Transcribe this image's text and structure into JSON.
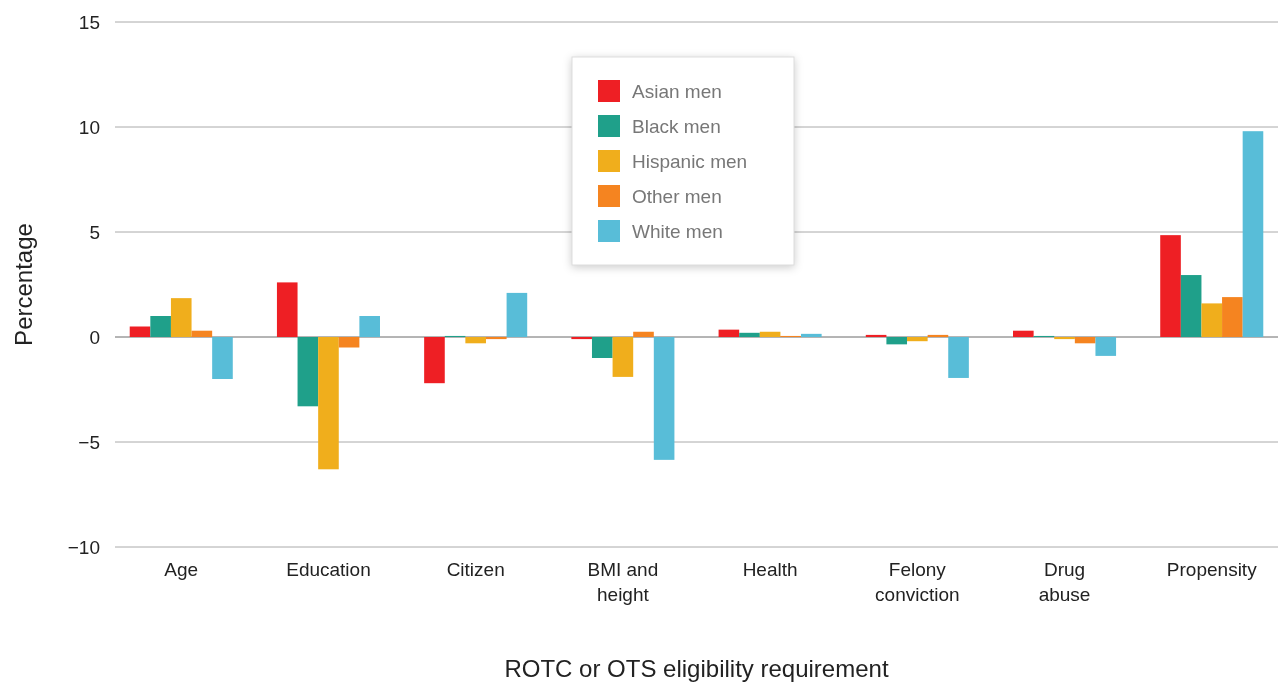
{
  "chart_data": {
    "type": "bar",
    "xlabel": "ROTC or OTS eligibility requirement",
    "ylabel": "Percentage",
    "categories": [
      "Age",
      "Education",
      "Citizen",
      "BMI and height",
      "Health",
      "Felony conviction",
      "Drug abuse",
      "Propensity"
    ],
    "series": [
      {
        "name": "Asian men",
        "color": "#ee1f24",
        "values": [
          0.5,
          2.6,
          -2.2,
          -0.1,
          0.35,
          0.1,
          0.3,
          4.85
        ]
      },
      {
        "name": "Black men",
        "color": "#1fa08a",
        "values": [
          1.0,
          -3.3,
          0.05,
          -1.0,
          0.2,
          -0.35,
          0.05,
          2.95
        ]
      },
      {
        "name": "Hispanic men",
        "color": "#f0ae1c",
        "values": [
          1.85,
          -6.3,
          -0.3,
          -1.9,
          0.25,
          -0.2,
          -0.1,
          1.6
        ]
      },
      {
        "name": "Other men",
        "color": "#f58420",
        "values": [
          0.3,
          -0.5,
          -0.1,
          0.25,
          0.05,
          0.1,
          -0.3,
          1.9
        ]
      },
      {
        "name": "White men",
        "color": "#58bdd8",
        "values": [
          -2.0,
          1.0,
          2.1,
          -5.85,
          0.15,
          -1.95,
          -0.9,
          9.8
        ]
      }
    ],
    "ylim": [
      -10,
      15
    ],
    "yticks": [
      {
        "value": -10,
        "label": "−10"
      },
      {
        "value": -5,
        "label": "−5"
      },
      0,
      5,
      10,
      15
    ],
    "grid": "y",
    "legend": "top"
  }
}
